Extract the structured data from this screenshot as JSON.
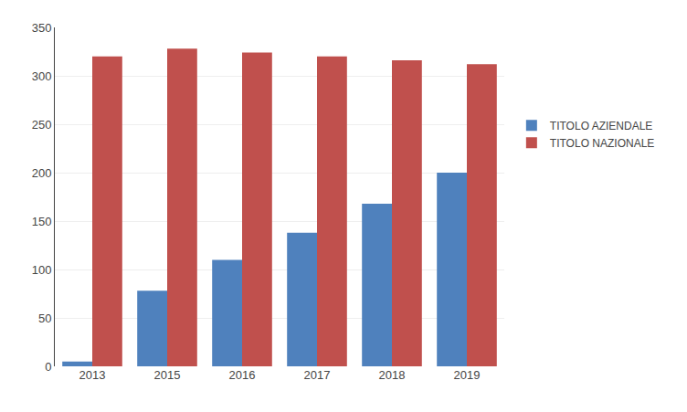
{
  "chart_data": {
    "type": "bar",
    "categories": [
      "2013",
      "2015",
      "2016",
      "2017",
      "2018",
      "2019"
    ],
    "series": [
      {
        "name": "TITOLO AZIENDALE",
        "color": "#4F81BD",
        "values": [
          5,
          78,
          110,
          138,
          168,
          200
        ]
      },
      {
        "name": "TITOLO NAZIONALE",
        "color": "#C0504D",
        "values": [
          320,
          328,
          324,
          320,
          316,
          312
        ]
      }
    ],
    "ylim": [
      0,
      350
    ],
    "yticks": [
      0,
      50,
      100,
      150,
      200,
      250,
      300,
      350
    ],
    "grid": true,
    "legend": "right"
  }
}
